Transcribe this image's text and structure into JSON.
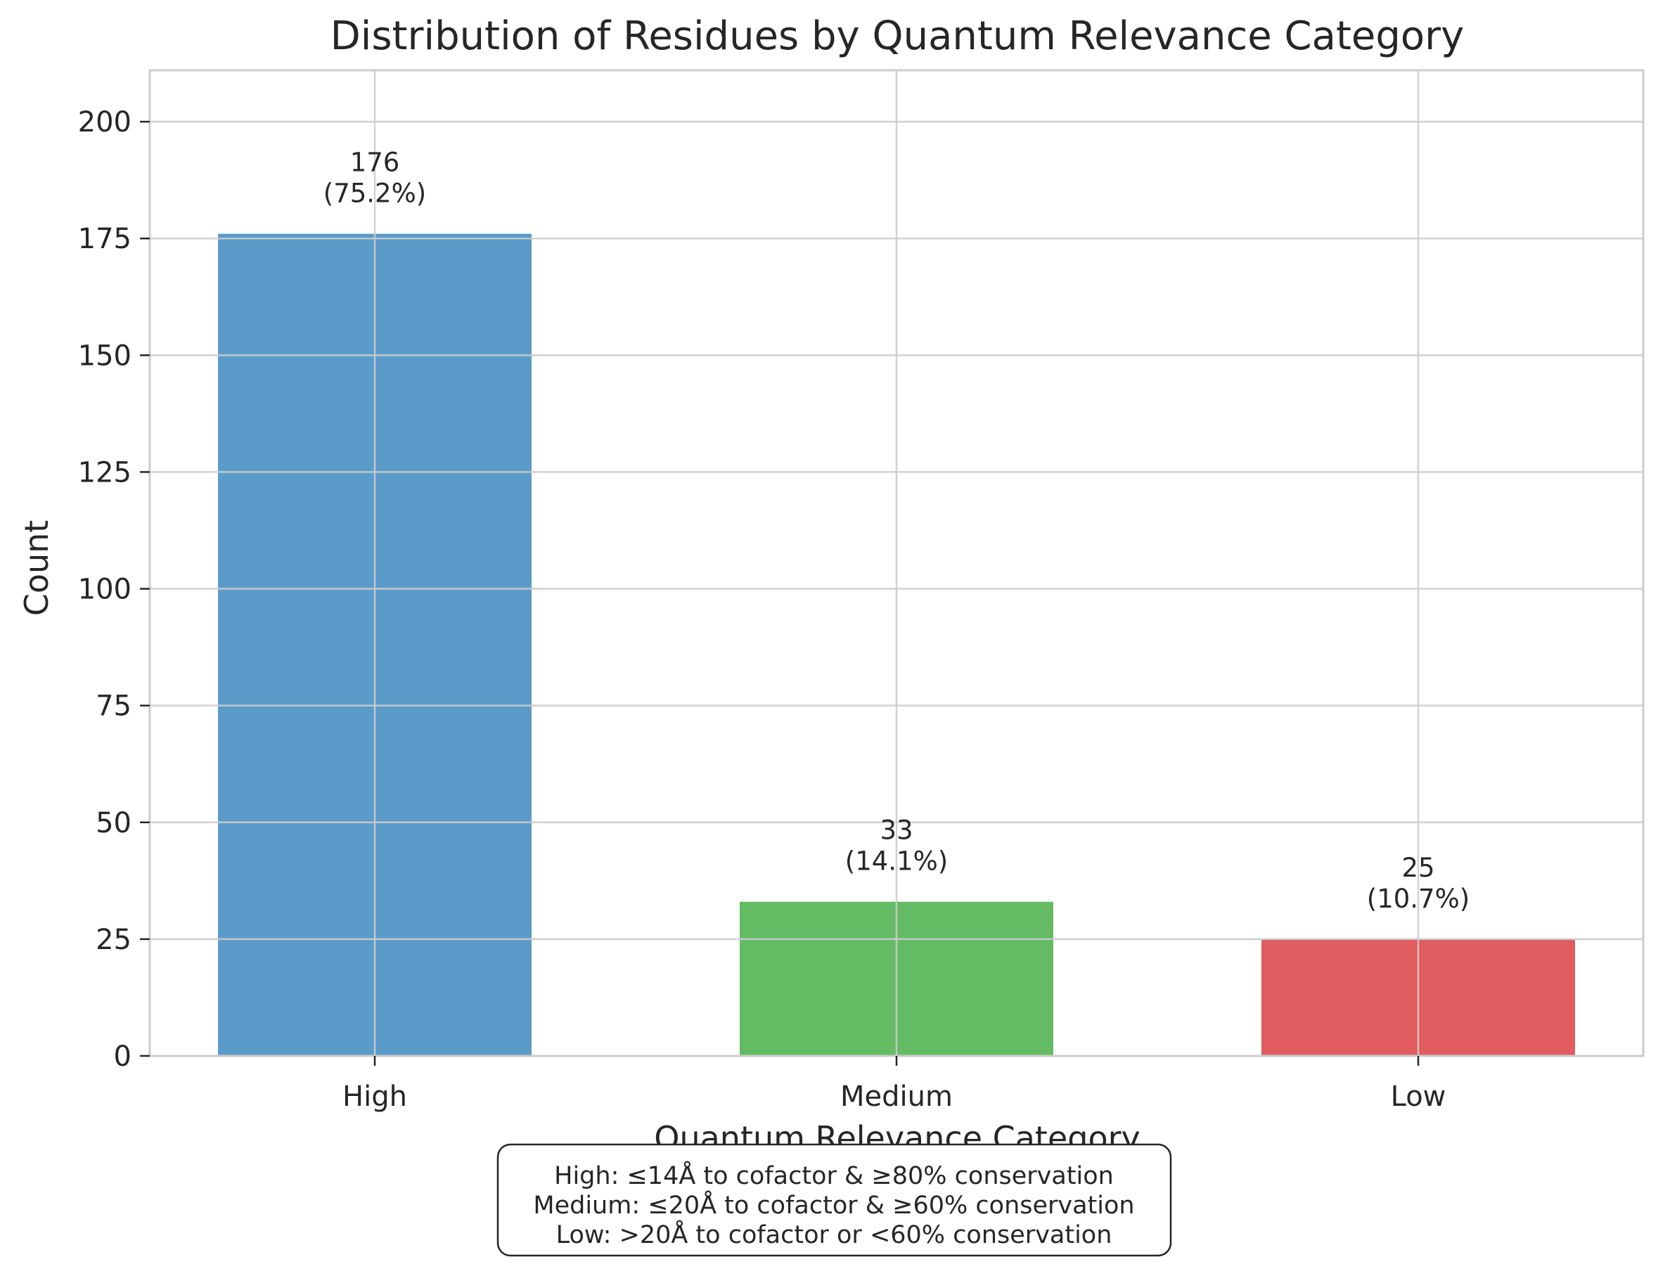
{
  "chart_data": {
    "type": "bar",
    "title": "Distribution of Residues by Quantum Relevance Category",
    "xlabel": "Quantum Relevance Category",
    "ylabel": "Count",
    "categories": [
      "High",
      "Medium",
      "Low"
    ],
    "values": [
      176,
      33,
      25
    ],
    "percent_labels": [
      "(75.2%)",
      "(14.1%)",
      "(10.7%)"
    ],
    "colors": [
      "#5b9bc9",
      "#63bb64",
      "#e05c5e"
    ],
    "ylim": [
      0,
      211
    ],
    "yticks": [
      0,
      25,
      50,
      75,
      100,
      125,
      150,
      175,
      200
    ],
    "grid": true,
    "legend": "none",
    "note": [
      "High: ≤14Å to cofactor & ≥80% conservation",
      "Medium: ≤20Å to cofactor & ≥60% conservation",
      "Low: >20Å to cofactor or <60% conservation"
    ]
  }
}
